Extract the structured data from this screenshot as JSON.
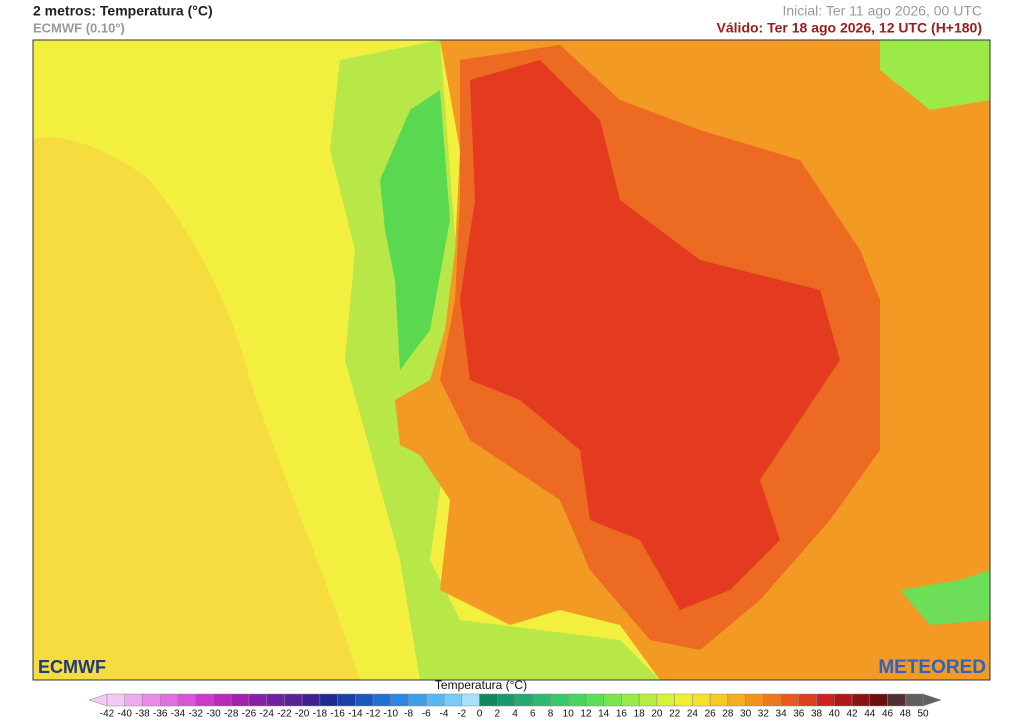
{
  "header": {
    "title": "2 metros: Temperatura (°C)",
    "source": "ECMWF (0.10°)",
    "initial": "Inicial: Ter 11 ago 2026, 00 UTC",
    "valid": "Válido: Ter 18 ago 2026, 12 UTC (H+180)"
  },
  "logos": {
    "left": "ECMWF",
    "right": "METEORED"
  },
  "legend": {
    "title": "Temperatura (°C)",
    "ticks": [
      -42,
      -40,
      -38,
      -36,
      -34,
      -32,
      -30,
      -28,
      -26,
      -24,
      -22,
      -20,
      -18,
      -16,
      -14,
      -12,
      -10,
      -8,
      -6,
      -4,
      -2,
      0,
      2,
      4,
      6,
      8,
      10,
      12,
      14,
      16,
      18,
      20,
      22,
      24,
      26,
      28,
      30,
      32,
      34,
      36,
      38,
      40,
      42,
      44,
      46,
      48,
      50
    ],
    "colors": [
      "#f5c8f5",
      "#eeaaee",
      "#e88ce8",
      "#e070e0",
      "#d855d8",
      "#cc3acc",
      "#b82ab8",
      "#a020b0",
      "#8a20a8",
      "#7020a0",
      "#5a2098",
      "#402090",
      "#1e2a90",
      "#1a3fa8",
      "#1a55c0",
      "#1f6fd4",
      "#2a88e0",
      "#3aa0ea",
      "#55b8f0",
      "#78ccf5",
      "#a8e0fa",
      "#108860",
      "#1a9a6a",
      "#22aa70",
      "#2cba70",
      "#38c868",
      "#48d460",
      "#5cde58",
      "#78e450",
      "#98ea48",
      "#b8ee40",
      "#d8f23a",
      "#f0f030",
      "#f8e02a",
      "#f8c824",
      "#f4ae22",
      "#f09420",
      "#ec7820",
      "#e85a20",
      "#e03c20",
      "#d02020",
      "#b01818",
      "#8a1414",
      "#6a1010",
      "#503030",
      "#606060"
    ]
  }
}
